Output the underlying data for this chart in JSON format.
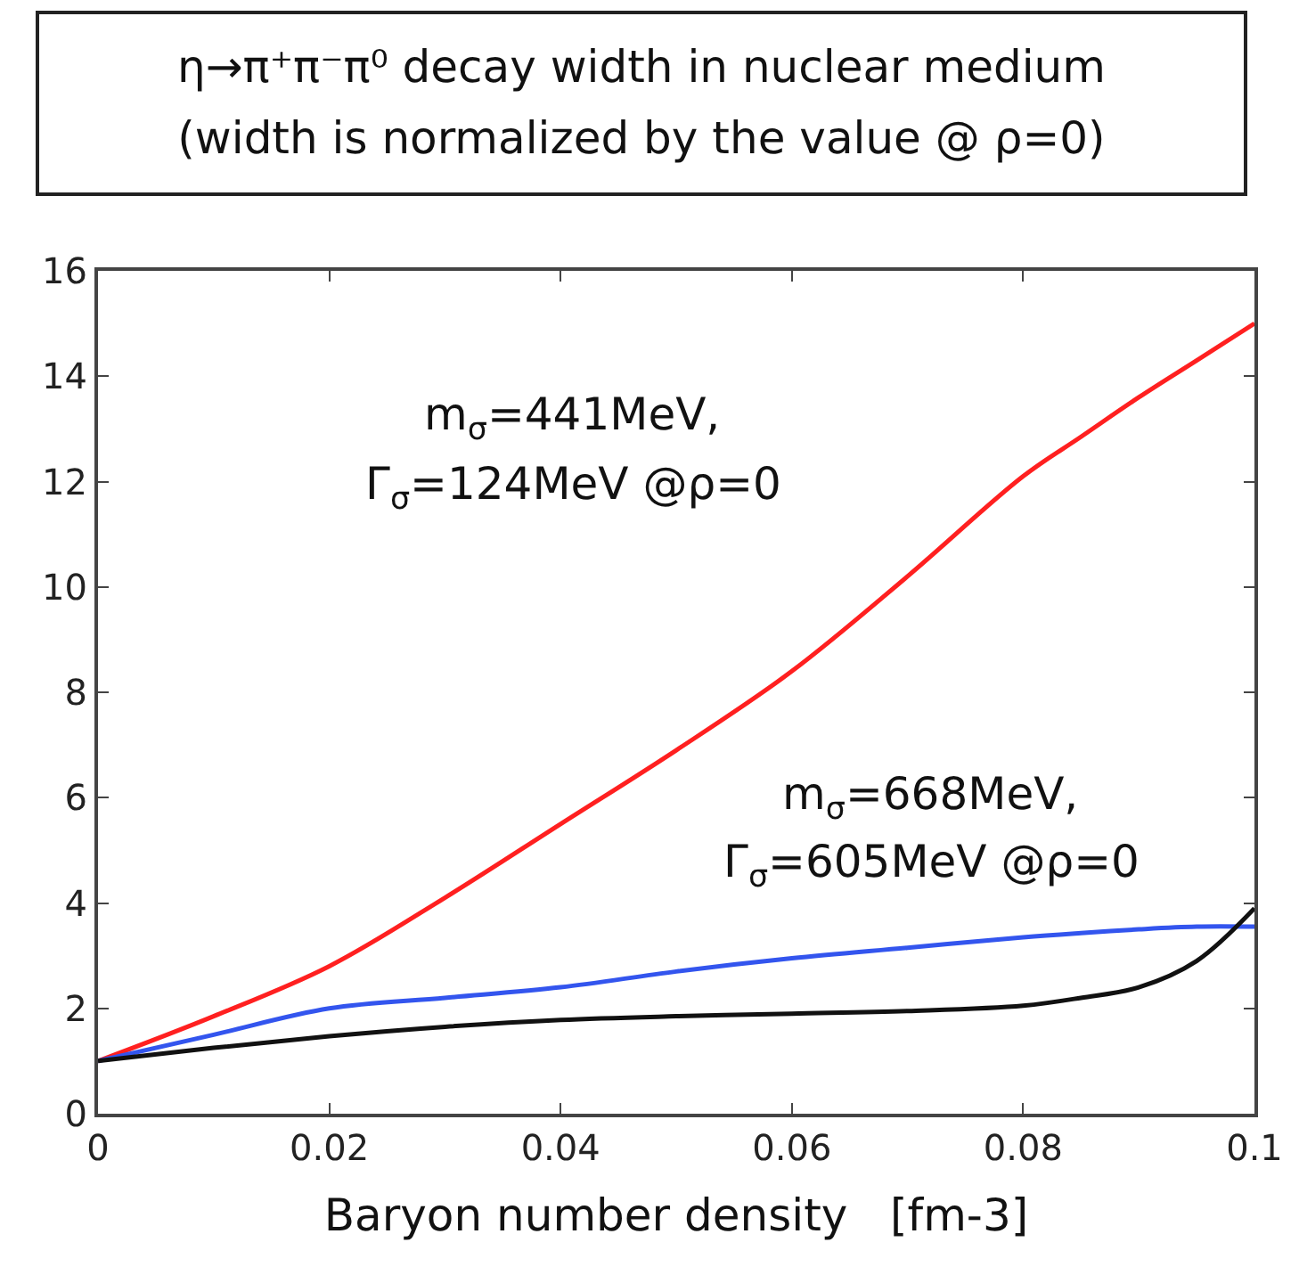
{
  "chart_data": {
    "type": "line",
    "title": "η→π⁺π⁻π⁰ decay width in nuclear medium",
    "subtitle": "(width is normalized by the value @ ρ=0)",
    "xlabel": "Baryon number density   [fm-3]",
    "x": [
      0,
      0.01,
      0.02,
      0.03,
      0.04,
      0.05,
      0.06,
      0.07,
      0.08,
      0.085,
      0.09,
      0.095,
      0.1
    ],
    "series": [
      {
        "color": "#ff2020",
        "values": [
          1,
          1.85,
          2.8,
          4.1,
          5.5,
          6.9,
          8.4,
          10.2,
          12.1,
          12.85,
          13.6,
          14.3,
          15.0
        ]
      },
      {
        "color": "#3355ee",
        "values": [
          1,
          1.5,
          2.0,
          2.2,
          2.4,
          2.7,
          2.95,
          3.15,
          3.35,
          3.43,
          3.5,
          3.55,
          3.55
        ]
      },
      {
        "color": "#111111",
        "values": [
          1,
          1.25,
          1.47,
          1.65,
          1.78,
          1.85,
          1.9,
          1.95,
          2.05,
          2.2,
          2.4,
          2.9,
          3.9
        ]
      }
    ],
    "xlim": [
      0,
      0.1
    ],
    "xticks": [
      0,
      0.02,
      0.04,
      0.06,
      0.08,
      0.1
    ],
    "ylim": [
      0,
      16
    ],
    "yticks": [
      0,
      2,
      4,
      6,
      8,
      10,
      12,
      14,
      16
    ],
    "grid": false,
    "marker": "none",
    "line_style": "solid",
    "annotations": [
      "m$_{σ}$=441MeV,",
      "Γ$_{σ}$=124MeV @ρ=0",
      "m$_{σ}$=668MeV,",
      "Γ$_{σ}$=605MeV @ρ=0"
    ]
  }
}
